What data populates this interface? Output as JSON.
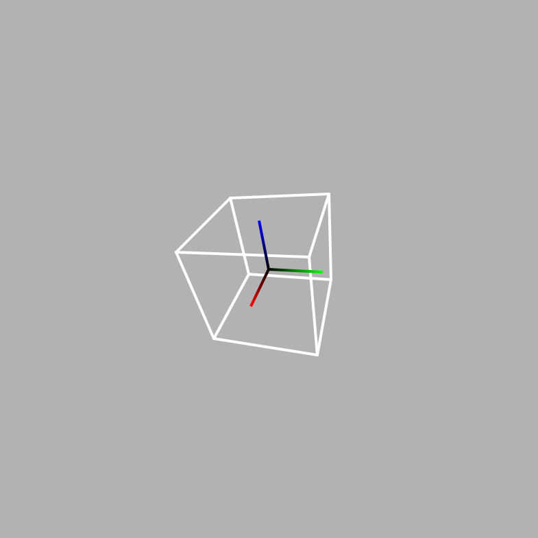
{
  "viewport": {
    "background_color": "#b2b2b2"
  },
  "cube": {
    "edge_color": "#ffffff"
  },
  "axes": {
    "x_color": "#ff0000",
    "y_color": "#00ff00",
    "z_color": "#0000ff",
    "origin_color": "#000000"
  }
}
